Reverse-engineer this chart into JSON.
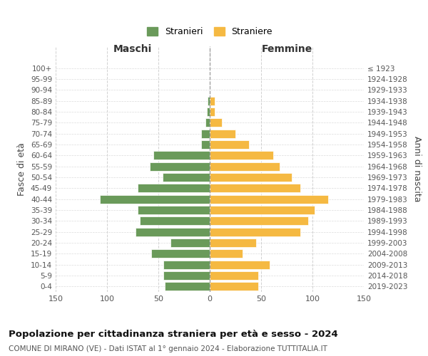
{
  "age_groups": [
    "0-4",
    "5-9",
    "10-14",
    "15-19",
    "20-24",
    "25-29",
    "30-34",
    "35-39",
    "40-44",
    "45-49",
    "50-54",
    "55-59",
    "60-64",
    "65-69",
    "70-74",
    "75-79",
    "80-84",
    "85-89",
    "90-94",
    "95-99",
    "100+"
  ],
  "birth_years": [
    "2019-2023",
    "2014-2018",
    "2009-2013",
    "2004-2008",
    "1999-2003",
    "1994-1998",
    "1989-1993",
    "1984-1988",
    "1979-1983",
    "1974-1978",
    "1969-1973",
    "1964-1968",
    "1959-1963",
    "1954-1958",
    "1949-1953",
    "1944-1948",
    "1939-1943",
    "1934-1938",
    "1929-1933",
    "1924-1928",
    "≤ 1923"
  ],
  "maschi": [
    44,
    45,
    45,
    57,
    38,
    72,
    68,
    70,
    107,
    70,
    46,
    58,
    55,
    8,
    8,
    4,
    3,
    2,
    0,
    0,
    0
  ],
  "femmine": [
    47,
    47,
    58,
    32,
    45,
    88,
    96,
    102,
    115,
    88,
    80,
    68,
    62,
    38,
    25,
    12,
    5,
    5,
    0,
    0,
    0
  ],
  "color_maschi": "#6a9a5a",
  "color_femmine": "#f5b942",
  "title": "Popolazione per cittadinanza straniera per età e sesso - 2024",
  "subtitle": "COMUNE DI MIRANO (VE) - Dati ISTAT al 1° gennaio 2024 - Elaborazione TUTTITALIA.IT",
  "xlabel_left": "Maschi",
  "xlabel_right": "Femmine",
  "ylabel_left": "Fasce di età",
  "ylabel_right": "Anni di nascita",
  "legend_maschi": "Stranieri",
  "legend_femmine": "Straniere",
  "xlim": 150,
  "background_color": "#ffffff"
}
